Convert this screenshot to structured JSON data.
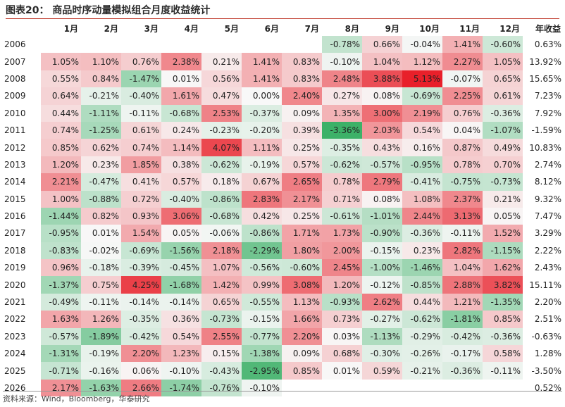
{
  "title": "图表20：  商品时序动量模拟组合月度收益统计",
  "source": "资料来源：Wind，Bloomberg，华泰研究",
  "colors": {
    "positive_max": "#e8202a",
    "negative_max": "#3db168",
    "neutral": "#f8f8f8"
  },
  "chart_data": {
    "type": "heatmap",
    "title": "商品时序动量模拟组合月度收益统计",
    "columns": [
      "1月",
      "2月",
      "3月",
      "4月",
      "5月",
      "6月",
      "7月",
      "8月",
      "9月",
      "10月",
      "11月",
      "12月"
    ],
    "annual_header": "年收益",
    "rows": [
      {
        "year": "2006",
        "values": [
          "",
          "",
          "",
          "",
          "",
          "",
          "",
          "-0.78%",
          "0.66%",
          "-0.04%",
          "1.41%",
          "-0.60%"
        ],
        "annual": "0.63%"
      },
      {
        "year": "2007",
        "values": [
          "1.05%",
          "1.10%",
          "0.76%",
          "2.38%",
          "0.21%",
          "1.41%",
          "0.83%",
          "-0.10%",
          "1.04%",
          "1.12%",
          "2.27%",
          "1.05%"
        ],
        "annual": "13.92%"
      },
      {
        "year": "2008",
        "values": [
          "0.55%",
          "0.84%",
          "-1.47%",
          "0.01%",
          "0.56%",
          "1.41%",
          "0.83%",
          "2.48%",
          "3.88%",
          "5.13%",
          "-0.07%",
          "0.65%"
        ],
        "annual": "15.65%"
      },
      {
        "year": "2009",
        "values": [
          "0.64%",
          "-0.21%",
          "-0.40%",
          "1.61%",
          "0.47%",
          "0.00%",
          "2.40%",
          "0.27%",
          "0.08%",
          "-0.69%",
          "2.25%",
          "0.61%"
        ],
        "annual": "7.23%"
      },
      {
        "year": "2010",
        "values": [
          "0.44%",
          "-1.11%",
          "-0.11%",
          "-0.68%",
          "2.53%",
          "-0.37%",
          "0.09%",
          "1.35%",
          "3.00%",
          "2.19%",
          "0.76%",
          "-0.36%"
        ],
        "annual": "7.92%"
      },
      {
        "year": "2011",
        "values": [
          "0.74%",
          "-1.25%",
          "0.61%",
          "0.24%",
          "-0.23%",
          "-0.20%",
          "0.39%",
          "-3.36%",
          "2.03%",
          "0.54%",
          "0.04%",
          "-1.07%"
        ],
        "annual": "-1.59%"
      },
      {
        "year": "2012",
        "values": [
          "0.85%",
          "0.62%",
          "0.74%",
          "1.14%",
          "4.07%",
          "1.11%",
          "0.25%",
          "-0.35%",
          "0.43%",
          "0.16%",
          "0.87%",
          "0.49%"
        ],
        "annual": "10.83%"
      },
      {
        "year": "2013",
        "values": [
          "1.20%",
          "0.23%",
          "1.85%",
          "0.38%",
          "-0.62%",
          "-0.19%",
          "0.57%",
          "-0.62%",
          "-0.57%",
          "-0.95%",
          "0.78%",
          "0.70%"
        ],
        "annual": "2.74%"
      },
      {
        "year": "2014",
        "values": [
          "2.21%",
          "-0.47%",
          "0.41%",
          "0.57%",
          "0.18%",
          "0.67%",
          "2.65%",
          "0.78%",
          "2.79%",
          "-0.41%",
          "-0.75%",
          "-0.73%"
        ],
        "annual": "8.12%"
      },
      {
        "year": "2015",
        "values": [
          "1.00%",
          "-0.88%",
          "0.72%",
          "-0.40%",
          "-0.86%",
          "2.83%",
          "2.17%",
          "0.71%",
          "0.08%",
          "1.08%",
          "2.37%",
          "0.21%"
        ],
        "annual": "9.32%"
      },
      {
        "year": "2016",
        "values": [
          "-1.44%",
          "0.82%",
          "0.93%",
          "3.06%",
          "-0.68%",
          "0.42%",
          "0.25%",
          "-0.61%",
          "-1.01%",
          "2.44%",
          "3.13%",
          "0.05%"
        ],
        "annual": "7.47%"
      },
      {
        "year": "2017",
        "values": [
          "-0.95%",
          "0.01%",
          "1.54%",
          "0.05%",
          "-0.06%",
          "-0.86%",
          "1.71%",
          "1.73%",
          "-0.90%",
          "-0.36%",
          "-0.11%",
          "1.52%"
        ],
        "annual": "3.29%"
      },
      {
        "year": "2018",
        "values": [
          "-0.83%",
          "-0.02%",
          "-0.69%",
          "-1.56%",
          "2.18%",
          "-2.29%",
          "1.80%",
          "2.00%",
          "-0.15%",
          "0.23%",
          "2.82%",
          "-1.15%"
        ],
        "annual": "2.22%"
      },
      {
        "year": "2019",
        "values": [
          "0.96%",
          "-0.18%",
          "-0.39%",
          "-0.45%",
          "1.07%",
          "-0.56%",
          "-0.60%",
          "2.45%",
          "-1.00%",
          "-1.46%",
          "1.04%",
          "1.62%"
        ],
        "annual": "2.43%"
      },
      {
        "year": "2020",
        "values": [
          "-1.37%",
          "0.75%",
          "4.25%",
          "-1.68%",
          "1.42%",
          "0.99%",
          "3.08%",
          "1.20%",
          "-0.12%",
          "-0.85%",
          "2.88%",
          "3.82%"
        ],
        "annual": "15.11%"
      },
      {
        "year": "2021",
        "values": [
          "-0.49%",
          "-0.11%",
          "-0.14%",
          "-0.14%",
          "0.65%",
          "-0.55%",
          "1.13%",
          "-0.93%",
          "2.62%",
          "0.44%",
          "1.21%",
          "-1.35%"
        ],
        "annual": "2.20%"
      },
      {
        "year": "2022",
        "values": [
          "1.63%",
          "1.26%",
          "-0.35%",
          "0.36%",
          "-0.73%",
          "-0.15%",
          "1.66%",
          "0.73%",
          "-0.27%",
          "-0.62%",
          "-1.81%",
          "0.85%"
        ],
        "annual": "2.51%"
      },
      {
        "year": "2023",
        "values": [
          "-0.57%",
          "-1.89%",
          "-0.42%",
          "0.54%",
          "2.55%",
          "-0.77%",
          "2.20%",
          "0.03%",
          "-1.13%",
          "-0.29%",
          "-0.42%",
          "-0.36%"
        ],
        "annual": "-0.63%"
      },
      {
        "year": "2024",
        "values": [
          "-1.31%",
          "-0.19%",
          "2.20%",
          "1.23%",
          "0.15%",
          "-1.38%",
          "0.09%",
          "0.68%",
          "-0.30%",
          "-0.26%",
          "-0.17%",
          "0.58%"
        ],
        "annual": "1.28%"
      },
      {
        "year": "2025",
        "values": [
          "-0.71%",
          "-0.16%",
          "0.06%",
          "-0.10%",
          "-0.43%",
          "-2.95%",
          "0.85%",
          "0.01%",
          "0.59%",
          "-0.21%",
          "-0.36%",
          "-0.11%"
        ],
        "annual": "-3.50%"
      },
      {
        "year": "2026",
        "values": [
          "2.17%",
          "-1.63%",
          "2.66%",
          "-1.74%",
          "-0.76%",
          "-0.10%",
          "",
          "",
          "",
          "",
          "",
          ""
        ],
        "annual": "0.52%"
      }
    ]
  }
}
